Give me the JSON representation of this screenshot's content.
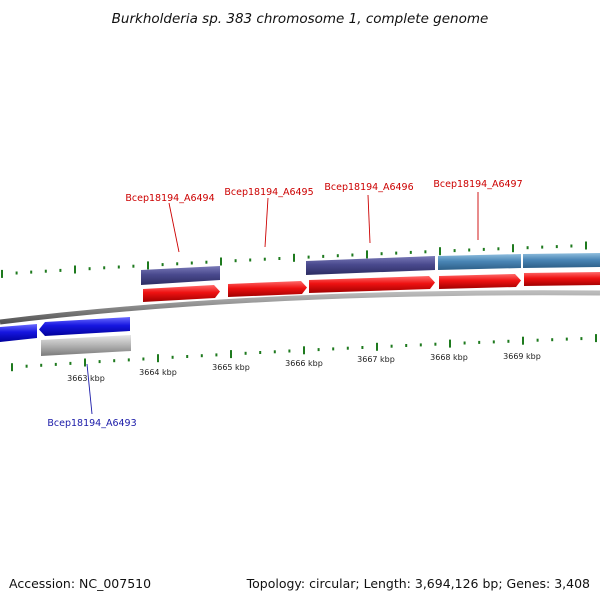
{
  "title": "Burkholderia sp. 383 chromosome 1, complete genome",
  "footer": {
    "accession": "Accession: NC_007510",
    "summary": "Topology: circular; Length: 3,694,126 bp; Genes: 3,408"
  },
  "axis": {
    "unit": "kbp",
    "ticks": [
      {
        "value": 3663,
        "label": "3663 kbp"
      },
      {
        "value": 3664,
        "label": "3664 kbp"
      },
      {
        "value": 3665,
        "label": "3665 kbp"
      },
      {
        "value": 3666,
        "label": "3666 kbp"
      },
      {
        "value": 3667,
        "label": "3667 kbp"
      },
      {
        "value": 3668,
        "label": "3668 kbp"
      },
      {
        "value": 3669,
        "label": "3669 kbp"
      }
    ]
  },
  "colors": {
    "outer_gene": "#4a4a8e",
    "outer_gene_light": "#4a86b6",
    "cds_forward": "#ee1111",
    "cds_reverse": "#1616e0",
    "gene_reverse": "#b8b8b8",
    "backbone": "#888888",
    "tick": "#1e7a1e",
    "label_forward": "#cc0000",
    "label_reverse": "#1a1aa8"
  },
  "genes": [
    {
      "name": "Bcep18194_A6493",
      "strand": "reverse"
    },
    {
      "name": "Bcep18194_A6494",
      "strand": "forward"
    },
    {
      "name": "Bcep18194_A6495",
      "strand": "forward"
    },
    {
      "name": "Bcep18194_A6496",
      "strand": "forward"
    },
    {
      "name": "Bcep18194_A6497",
      "strand": "forward"
    }
  ]
}
